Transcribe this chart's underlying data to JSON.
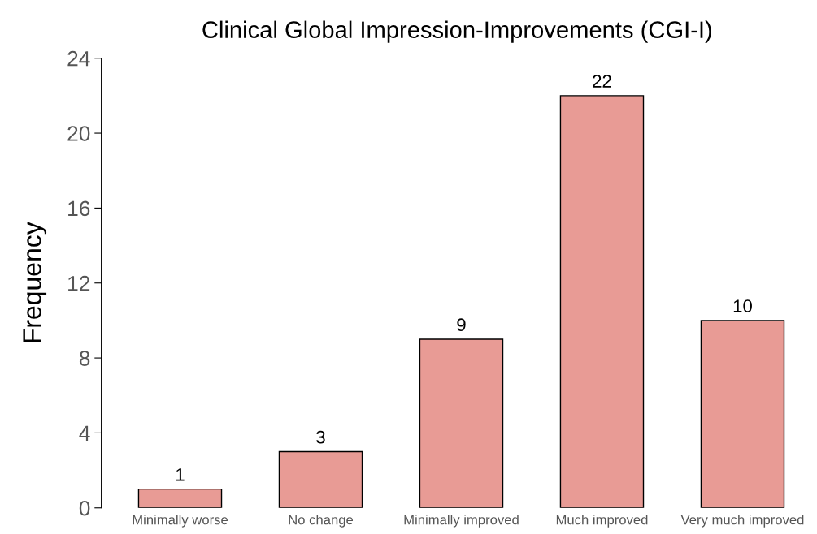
{
  "chart_data": {
    "type": "bar",
    "title": "Clinical Global Impression-Improvements (CGI-I)",
    "ylabel": "Frequency",
    "categories": [
      "Minimally worse",
      "No change",
      "Minimally improved",
      "Much improved",
      "Very much improved"
    ],
    "values": [
      1,
      3,
      9,
      22,
      10
    ],
    "color": "#e89b95",
    "ylim": [
      0,
      24
    ],
    "yticks": [
      0,
      4,
      8,
      12,
      16,
      20,
      24
    ],
    "grid": false,
    "data_labels": true
  }
}
